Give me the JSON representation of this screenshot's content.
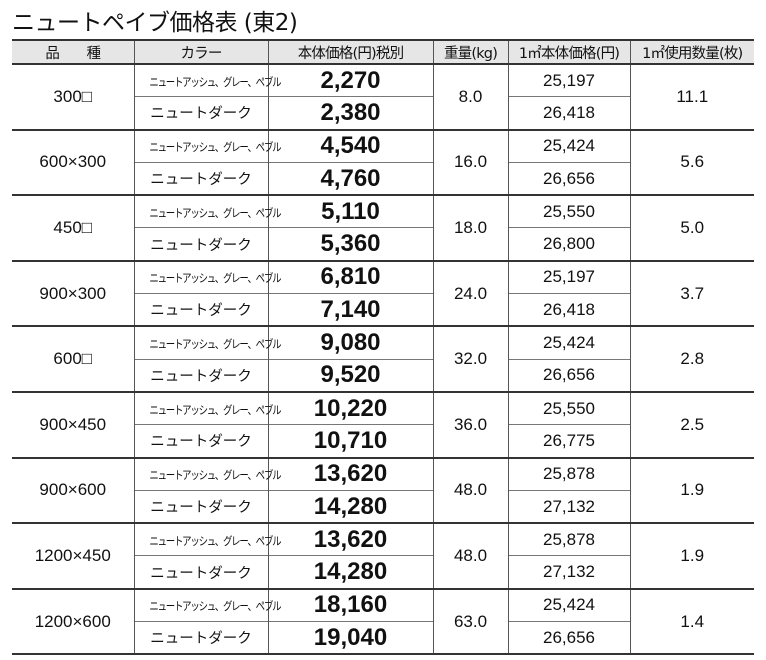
{
  "title": "ニュートペイブ価格表 (東2)",
  "headers": [
    "品　　種",
    "カラー",
    "本体価格(円)税別",
    "重量(kg)",
    "1㎡本体価格(円)",
    "1㎡使用数量(枚)"
  ],
  "colors": [
    "ニュートアッシュ、グレー、ペブル",
    "ニュートダーク"
  ],
  "rows": [
    {
      "size": "300□",
      "prices": [
        "2,270",
        "2,380"
      ],
      "weight": "8.0",
      "unit": [
        "25,197",
        "26,418"
      ],
      "qty": "11.1"
    },
    {
      "size": "600×300",
      "prices": [
        "4,540",
        "4,760"
      ],
      "weight": "16.0",
      "unit": [
        "25,424",
        "26,656"
      ],
      "qty": "5.6"
    },
    {
      "size": "450□",
      "prices": [
        "5,110",
        "5,360"
      ],
      "weight": "18.0",
      "unit": [
        "25,550",
        "26,800"
      ],
      "qty": "5.0"
    },
    {
      "size": "900×300",
      "prices": [
        "6,810",
        "7,140"
      ],
      "weight": "24.0",
      "unit": [
        "25,197",
        "26,418"
      ],
      "qty": "3.7"
    },
    {
      "size": "600□",
      "prices": [
        "9,080",
        "9,520"
      ],
      "weight": "32.0",
      "unit": [
        "25,424",
        "26,656"
      ],
      "qty": "2.8"
    },
    {
      "size": "900×450",
      "prices": [
        "10,220",
        "10,710"
      ],
      "weight": "36.0",
      "unit": [
        "25,550",
        "26,775"
      ],
      "qty": "2.5"
    },
    {
      "size": "900×600",
      "prices": [
        "13,620",
        "14,280"
      ],
      "weight": "48.0",
      "unit": [
        "25,878",
        "27,132"
      ],
      "qty": "1.9"
    },
    {
      "size": "1200×450",
      "prices": [
        "13,620",
        "14,280"
      ],
      "weight": "48.0",
      "unit": [
        "25,878",
        "27,132"
      ],
      "qty": "1.9"
    },
    {
      "size": "1200×600",
      "prices": [
        "18,160",
        "19,040"
      ],
      "weight": "63.0",
      "unit": [
        "25,424",
        "26,656"
      ],
      "qty": "1.4"
    }
  ]
}
